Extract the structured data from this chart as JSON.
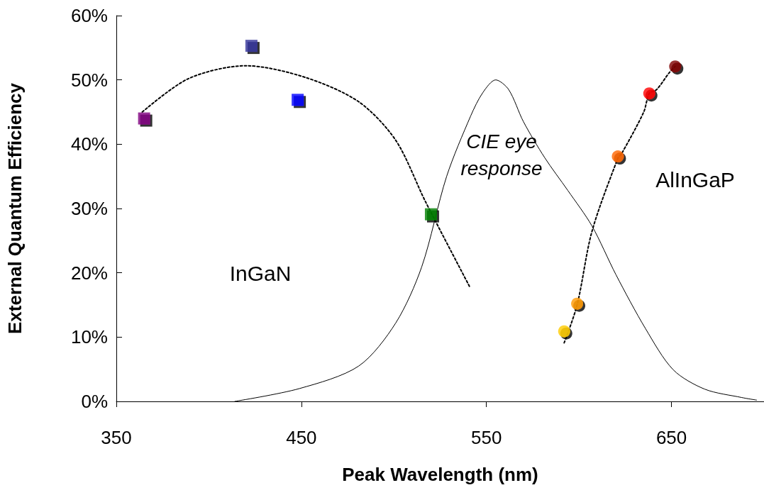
{
  "chart_data": {
    "type": "scatter",
    "xlabel": "Peak Wavelength (nm)",
    "ylabel": "External Quantum Efficiency",
    "xlim": [
      350,
      700
    ],
    "xticks": [
      350,
      450,
      550,
      650
    ],
    "ylim": [
      0,
      60
    ],
    "yticks": [
      {
        "value": 0,
        "label": "0%"
      },
      {
        "value": 10,
        "label": "10%"
      },
      {
        "value": 20,
        "label": "20%"
      },
      {
        "value": 30,
        "label": "30%"
      },
      {
        "value": 40,
        "label": "40%"
      },
      {
        "value": 50,
        "label": "50%"
      },
      {
        "value": 60,
        "label": "60%"
      }
    ],
    "grid": false,
    "series": [
      {
        "type": "line",
        "color": "#000000",
        "line_style": "solid",
        "marker": "none",
        "x": [
          414,
          449,
          481,
          501,
          515,
          528.5,
          541.5,
          548,
          555,
          562,
          570,
          581.5,
          594,
          607,
          620,
          636,
          651,
          668,
          688,
          696
        ],
        "values": [
          0,
          2,
          5.5,
          12.2,
          20.9,
          35,
          44.4,
          48,
          50,
          48.5,
          43.5,
          37.9,
          32.8,
          27.3,
          19.7,
          11.3,
          4.9,
          1.9,
          0.6,
          0.2
        ]
      },
      {
        "type": "line",
        "color": "#000000",
        "line_style": "dotted",
        "marker": "none",
        "x": [
          364,
          389,
          420,
          452,
          481,
          501,
          517,
          541
        ],
        "values": [
          45,
          50.2,
          52.2,
          50.4,
          46.6,
          40.6,
          31.1,
          17.8
        ]
      },
      {
        "type": "line",
        "color": "#000000",
        "line_style": "dotted",
        "marker": "none",
        "x": [
          592,
          599,
          607,
          621,
          623,
          635,
          638,
          642,
          649,
          652
        ],
        "values": [
          9.1,
          15,
          26.4,
          37.8,
          38.5,
          45,
          47.9,
          48.5,
          51.2,
          52.1
        ]
      },
      {
        "marker": "square",
        "x": [
          365,
          423,
          448,
          520
        ],
        "values": [
          44,
          55.3,
          46.9,
          29.1
        ],
        "colors": [
          "#800080",
          "#333399",
          "#0000ff",
          "#008000"
        ]
      },
      {
        "marker": "circle",
        "x": [
          592,
          599,
          621,
          638,
          652
        ],
        "values": [
          10.9,
          15.2,
          38.1,
          47.9,
          52.1
        ],
        "colors": [
          "#ffcc00",
          "#ff9900",
          "#ff6600",
          "#ff0000",
          "#800000"
        ]
      }
    ],
    "annotations": [
      "InGaN",
      "CIE eye\nresponse",
      "AlInGaP"
    ]
  }
}
